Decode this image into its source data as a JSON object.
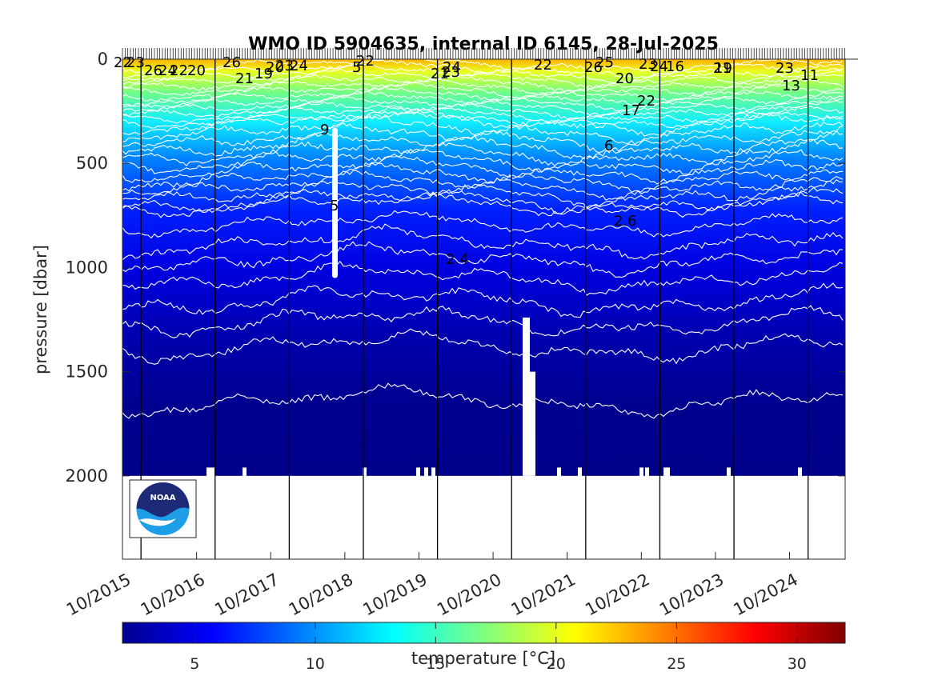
{
  "chart_data": {
    "type": "heatmap",
    "title": "WMO ID 5904635, internal ID 6145, 28-Jul-2025",
    "ylabel": "pressure [dbar]",
    "ylim": [
      2400,
      0
    ],
    "yticks": [
      0,
      500,
      1000,
      1500,
      2000
    ],
    "xlim": [
      "2015-10",
      "2025-07"
    ],
    "xticks": [
      "10/2015",
      "10/2016",
      "10/2017",
      "10/2018",
      "10/2019",
      "10/2020",
      "10/2021",
      "10/2022",
      "10/2023",
      "10/2024"
    ],
    "colorbar": {
      "label": "temperature [°C]",
      "range": [
        2,
        32
      ],
      "ticks": [
        5,
        10,
        15,
        20,
        25,
        30
      ],
      "colormap": "jet"
    },
    "contour_levels": [
      2,
      3,
      4,
      5,
      6,
      7,
      8,
      9,
      10,
      11,
      12,
      13,
      14,
      15,
      16,
      17,
      18,
      19,
      20,
      21,
      22,
      23,
      24,
      25,
      26,
      27,
      28
    ],
    "contour_label_values": [
      "22",
      "23",
      "26",
      "24",
      "22",
      "20",
      "26",
      "21",
      "19",
      "20",
      "23",
      "24",
      "22",
      "5",
      "21",
      "23",
      "24",
      "22",
      "26",
      "25",
      "20",
      "23",
      "24",
      "16",
      "17",
      "22",
      "21",
      "19",
      "23",
      "13",
      "11",
      "9",
      "6",
      "5",
      "2.6",
      "2.4"
    ],
    "grid": false,
    "logo": "NOAA"
  }
}
